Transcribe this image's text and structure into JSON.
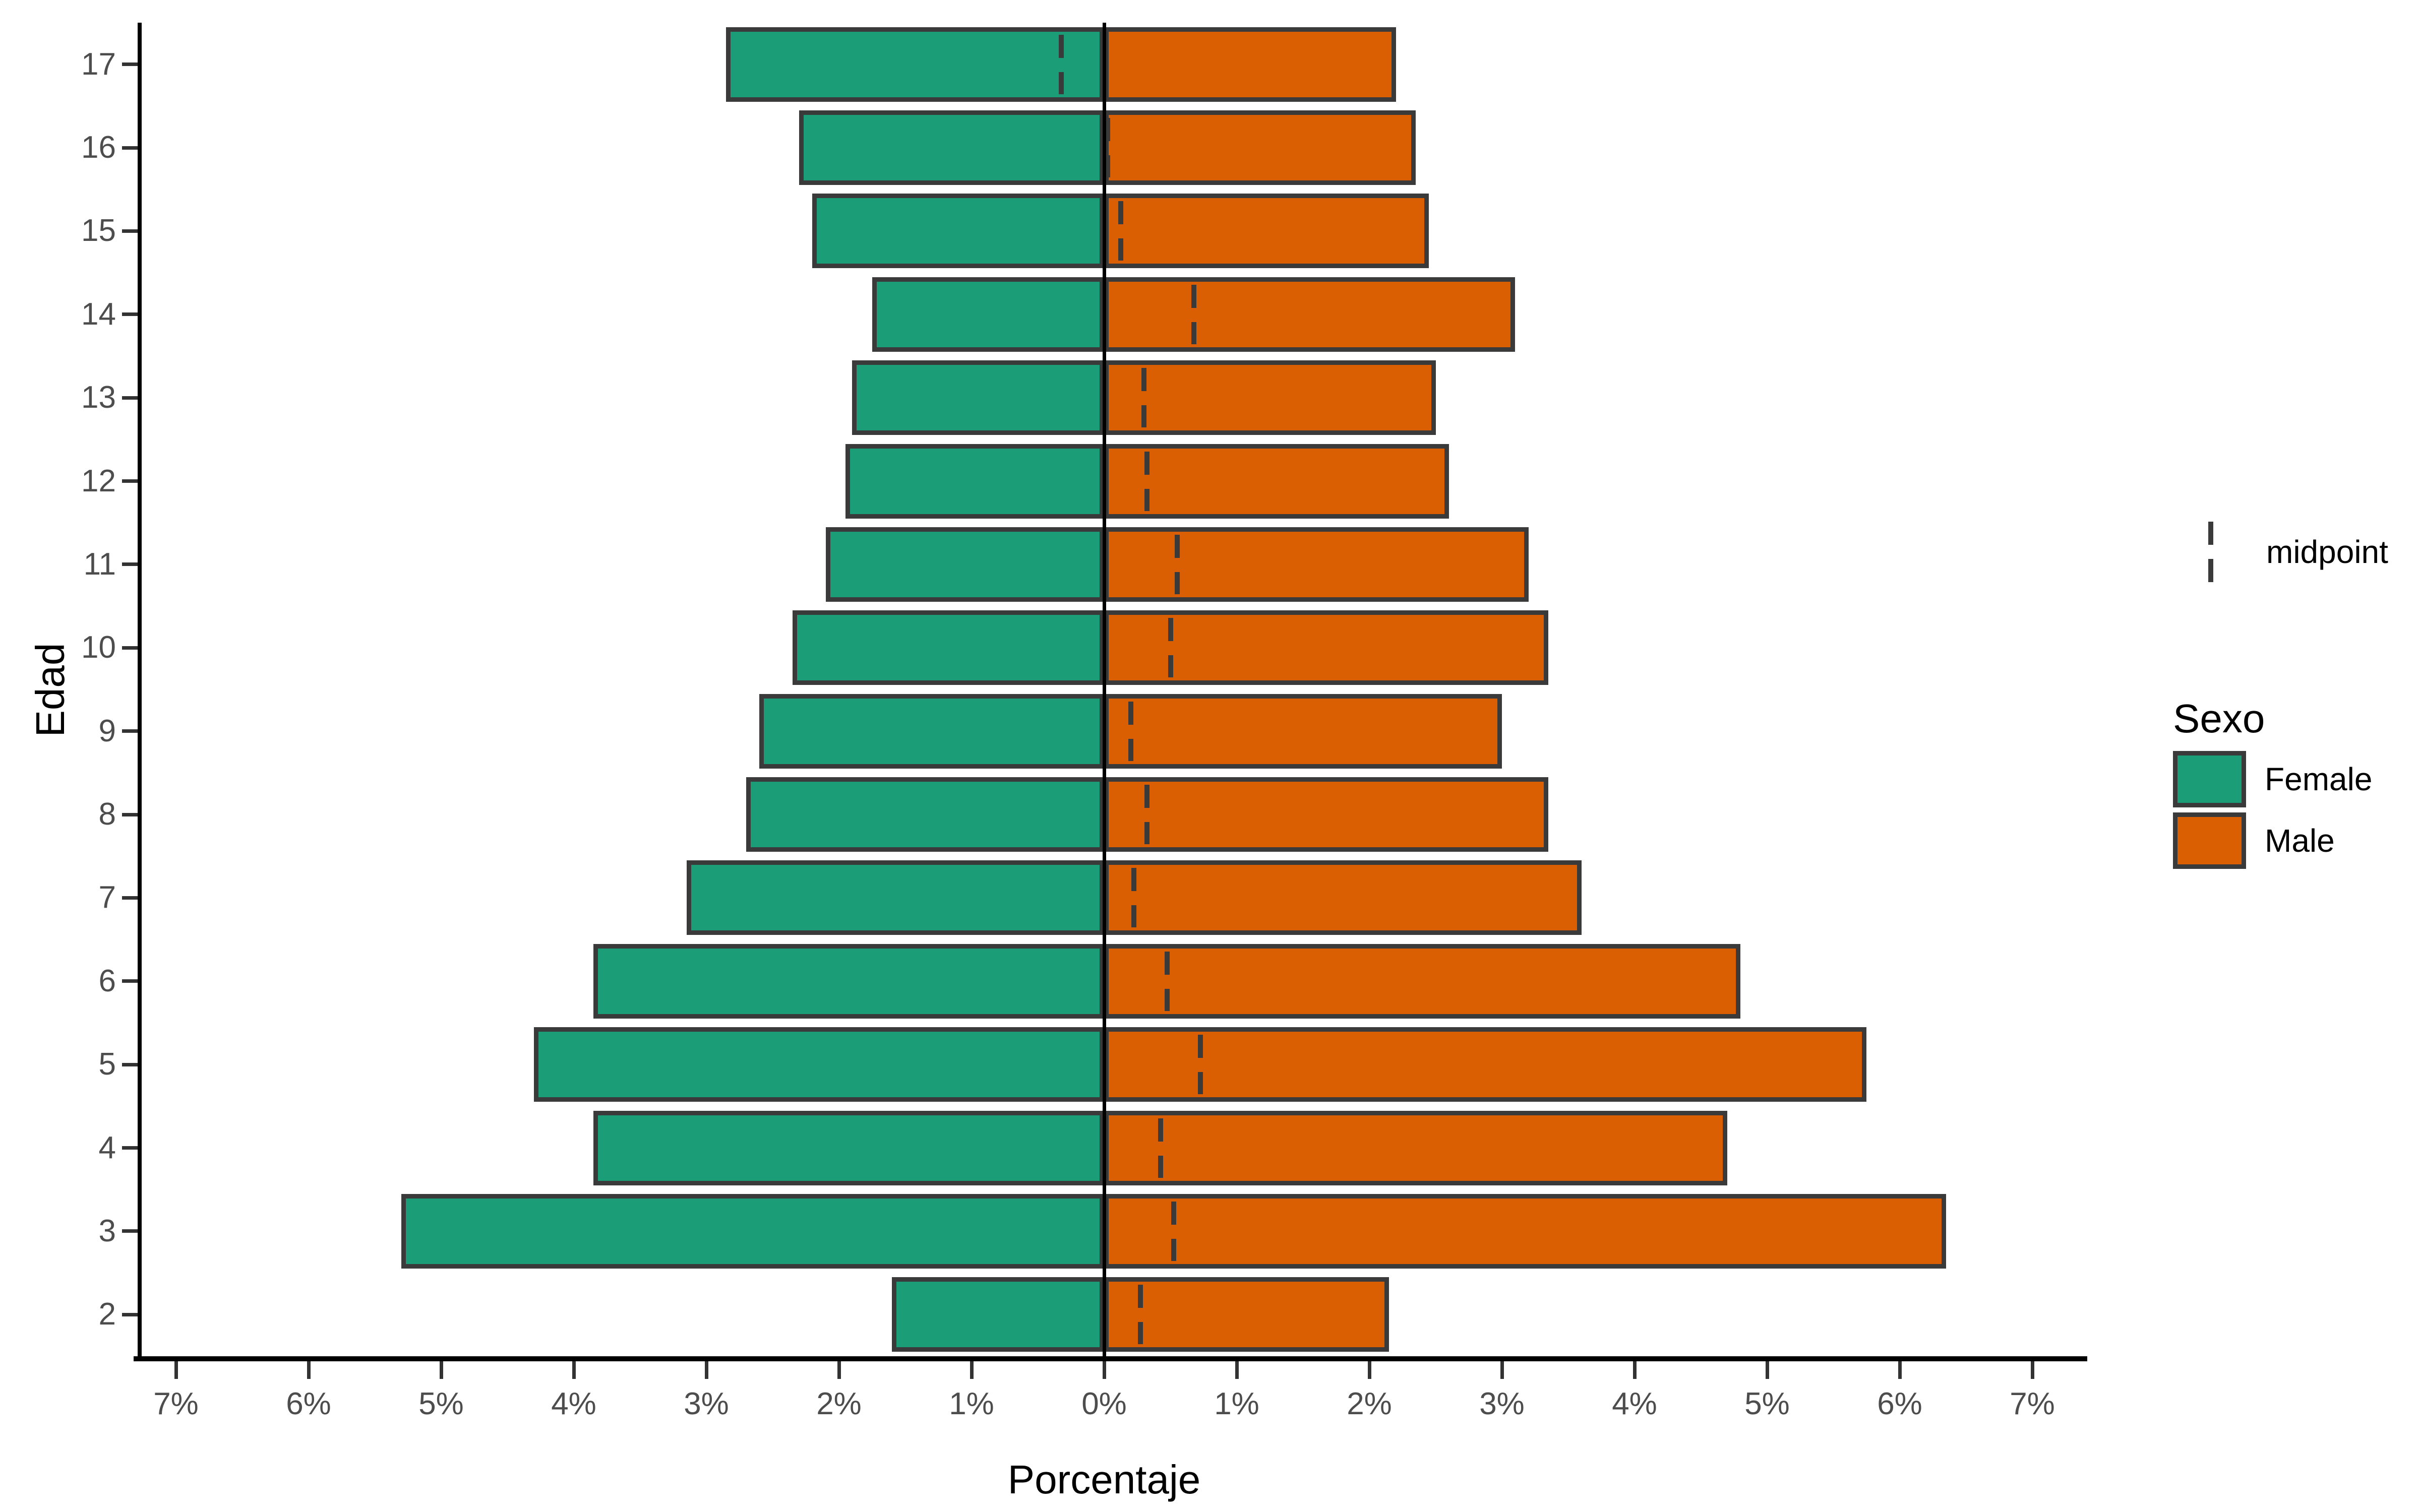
{
  "figure": {
    "xlabel": "Porcentaje",
    "ylabel": "Edad"
  },
  "legend": {
    "midpoint_label": "midpoint",
    "sexo_title": "Sexo",
    "female_label": "Female",
    "male_label": "Male",
    "position": "right"
  },
  "colors": {
    "female": "#1B9E77",
    "male": "#D95F02",
    "bar_border": "#3a3a3a",
    "midpoint_dash": "#3a3a3a",
    "axis_line": "#000000",
    "zero_line": "#000000",
    "tick_mark": "#333333",
    "tick_label": "#4d4d4d",
    "background": "#ffffff"
  },
  "chart_data": {
    "type": "bar",
    "subtype": "population-pyramid",
    "orientation": "horizontal",
    "title": "",
    "xlabel": "Porcentaje",
    "ylabel": "Edad",
    "grid": false,
    "legend_position": "right",
    "categories_top_to_bottom": [
      17,
      16,
      15,
      14,
      13,
      12,
      11,
      10,
      9,
      8,
      7,
      6,
      5,
      4,
      3,
      2
    ],
    "series": [
      {
        "name": "Female",
        "side": "left",
        "color": "#1B9E77",
        "values_pct": [
          2.85,
          2.3,
          2.2,
          1.75,
          1.9,
          1.95,
          2.1,
          2.35,
          2.6,
          2.7,
          3.15,
          3.85,
          4.3,
          3.85,
          5.3,
          1.6
        ]
      },
      {
        "name": "Male",
        "side": "right",
        "color": "#D95F02",
        "values_pct": [
          2.2,
          2.35,
          2.45,
          3.1,
          2.5,
          2.6,
          3.2,
          3.35,
          3.0,
          3.35,
          3.6,
          4.8,
          5.75,
          4.7,
          6.35,
          2.15
        ]
      }
    ],
    "midpoint_rule": "(male - female) / 2",
    "midpoints_pct": [
      -0.325,
      0.025,
      0.125,
      0.675,
      0.3,
      0.325,
      0.55,
      0.5,
      0.2,
      0.325,
      0.225,
      0.475,
      0.725,
      0.425,
      0.525,
      0.275
    ],
    "x_tick_values": [
      -7,
      -6,
      -5,
      -4,
      -3,
      -2,
      -1,
      0,
      1,
      2,
      3,
      4,
      5,
      6,
      7
    ],
    "x_tick_labels": [
      "7%",
      "6%",
      "5%",
      "4%",
      "3%",
      "2%",
      "1%",
      "0%",
      "1%",
      "2%",
      "3%",
      "4%",
      "5%",
      "6%",
      "7%"
    ],
    "xlim": [
      -7.3,
      7.3
    ]
  }
}
